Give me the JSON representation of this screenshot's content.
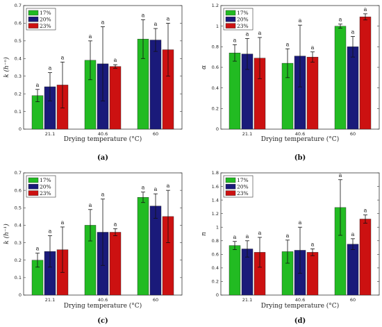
{
  "colors": {
    "17%": "#22bb22",
    "20%": "#1a1a7a",
    "23%": "#cc1111"
  },
  "chart_data": [
    {
      "type": "bar",
      "panel": "(a)",
      "ylabel": "k (h⁻ⁿ)",
      "xlabel": "Drying temperature (°C)",
      "categories": [
        "21.1",
        "40.6",
        "60"
      ],
      "ylim": [
        0,
        0.7
      ],
      "yticks": [
        0,
        0.1,
        0.2,
        0.3,
        0.4,
        0.5,
        0.6,
        0.7
      ],
      "legend": "top-left",
      "series": [
        {
          "name": "17%",
          "values": [
            0.19,
            0.39,
            0.51
          ],
          "errors": [
            0.035,
            0.11,
            0.11
          ]
        },
        {
          "name": "20%",
          "values": [
            0.24,
            0.37,
            0.505
          ],
          "errors": [
            0.08,
            0.21,
            0.065
          ]
        },
        {
          "name": "23%",
          "values": [
            0.25,
            0.355,
            0.45
          ],
          "errors": [
            0.13,
            0.01,
            0.15
          ]
        }
      ],
      "labels": [
        "a",
        "a",
        "a",
        "a",
        "a",
        "a",
        "a",
        "a",
        "a"
      ]
    },
    {
      "type": "bar",
      "panel": "(b)",
      "ylabel": "α",
      "xlabel": "Drying temperature (°C)",
      "categories": [
        "21.1",
        "40.6",
        "60"
      ],
      "ylim": [
        0,
        1.2
      ],
      "yticks": [
        0,
        0.2,
        0.4,
        0.6,
        0.8,
        1,
        1.2
      ],
      "legend": "top-left",
      "series": [
        {
          "name": "17%",
          "values": [
            0.74,
            0.64,
            1.0
          ],
          "errors": [
            0.08,
            0.14,
            0.02
          ]
        },
        {
          "name": "20%",
          "values": [
            0.73,
            0.71,
            0.8
          ],
          "errors": [
            0.15,
            0.3,
            0.1
          ]
        },
        {
          "name": "23%",
          "values": [
            0.69,
            0.7,
            1.09
          ],
          "errors": [
            0.2,
            0.05,
            0.03
          ]
        }
      ],
      "labels": [
        "a",
        "a",
        "a",
        "a",
        "a",
        "a",
        "a",
        "a",
        "a"
      ]
    },
    {
      "type": "bar",
      "panel": "(c)",
      "ylabel": "k (h⁻¹)",
      "xlabel": "Drying temperature (°C)",
      "categories": [
        "21.1",
        "40.6",
        "60"
      ],
      "ylim": [
        0,
        0.7
      ],
      "yticks": [
        0,
        0.1,
        0.2,
        0.3,
        0.4,
        0.5,
        0.6,
        0.7
      ],
      "legend": "top-left",
      "series": [
        {
          "name": "17%",
          "values": [
            0.2,
            0.4,
            0.56
          ],
          "errors": [
            0.04,
            0.09,
            0.03
          ]
        },
        {
          "name": "20%",
          "values": [
            0.25,
            0.36,
            0.51
          ],
          "errors": [
            0.09,
            0.19,
            0.07
          ]
        },
        {
          "name": "23%",
          "values": [
            0.26,
            0.36,
            0.45
          ],
          "errors": [
            0.13,
            0.02,
            0.15
          ]
        }
      ],
      "labels": [
        "a",
        "a",
        "a",
        "a",
        "a",
        "a",
        "a",
        "a",
        "a"
      ]
    },
    {
      "type": "bar",
      "panel": "(d)",
      "ylabel": "n",
      "xlabel": "Drying temperature (°C)",
      "categories": [
        "21.1",
        "40.6",
        "60"
      ],
      "ylim": [
        0,
        1.8
      ],
      "yticks": [
        0,
        0.2,
        0.4,
        0.6,
        0.8,
        1,
        1.2,
        1.4,
        1.6,
        1.8
      ],
      "legend": "top-left",
      "series": [
        {
          "name": "17%",
          "values": [
            0.73,
            0.64,
            1.29
          ],
          "errors": [
            0.06,
            0.17,
            0.41
          ]
        },
        {
          "name": "20%",
          "values": [
            0.68,
            0.66,
            0.75
          ],
          "errors": [
            0.12,
            0.34,
            0.08
          ]
        },
        {
          "name": "23%",
          "values": [
            0.63,
            0.63,
            1.12
          ],
          "errors": [
            0.22,
            0.05,
            0.06
          ]
        }
      ],
      "labels": [
        "a",
        "a",
        "a",
        "a",
        "a",
        "a",
        "a",
        "a",
        "a"
      ]
    }
  ]
}
